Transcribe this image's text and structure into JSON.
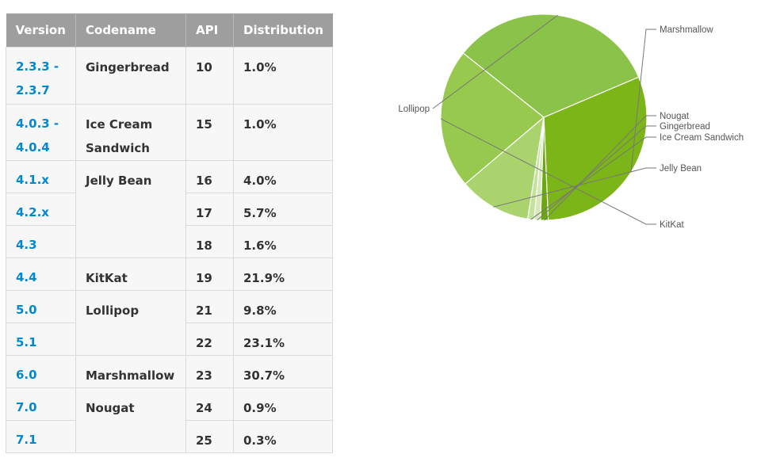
{
  "table": {
    "headers": [
      "Version",
      "Codename",
      "API",
      "Distribution"
    ],
    "rows": [
      {
        "version": "2.3.3 -\n2.3.7",
        "codename": "Gingerbread",
        "api": "10",
        "distribution": "1.0%"
      },
      {
        "version": "4.0.3 -\n4.0.4",
        "codename": "Ice Cream\nSandwich",
        "api": "15",
        "distribution": "1.0%"
      },
      {
        "version": "4.1.x",
        "codename": "Jelly Bean",
        "api": "16",
        "distribution": "4.0%"
      },
      {
        "version": "4.2.x",
        "codename": "",
        "api": "17",
        "distribution": "5.7%"
      },
      {
        "version": "4.3",
        "codename": "",
        "api": "18",
        "distribution": "1.6%"
      },
      {
        "version": "4.4",
        "codename": "KitKat",
        "api": "19",
        "distribution": "21.9%"
      },
      {
        "version": "5.0",
        "codename": "Lollipop",
        "api": "21",
        "distribution": "9.8%"
      },
      {
        "version": "5.1",
        "codename": "",
        "api": "22",
        "distribution": "23.1%"
      },
      {
        "version": "6.0",
        "codename": "Marshmallow",
        "api": "23",
        "distribution": "30.7%"
      },
      {
        "version": "7.0",
        "codename": "Nougat",
        "api": "24",
        "distribution": "0.9%"
      },
      {
        "version": "7.1",
        "codename": "",
        "api": "25",
        "distribution": "0.3%"
      }
    ]
  },
  "chart_data": {
    "type": "pie",
    "title": "",
    "slices": [
      {
        "label": "Marshmallow",
        "value": 30.7,
        "color": "#7cb518"
      },
      {
        "label": "Nougat",
        "value": 1.2,
        "color": "#6aa80f"
      },
      {
        "label": "Gingerbread",
        "value": 1.0,
        "color": "#d6eab8"
      },
      {
        "label": "Ice Cream Sandwich",
        "value": 1.0,
        "color": "#c5e29d"
      },
      {
        "label": "Jelly Bean",
        "value": 11.3,
        "color": "#aad36e"
      },
      {
        "label": "KitKat",
        "value": 21.9,
        "color": "#97c94e"
      },
      {
        "label": "Lollipop",
        "value": 32.9,
        "color": "#8bc34a"
      }
    ],
    "start_angle_deg": -23,
    "direction": "clockwise",
    "colors": {
      "slice_border": "#ffffff",
      "leader_line": "#777777",
      "label_text": "#555555"
    }
  },
  "colors": {
    "header_bg": "#9e9e9e",
    "header_text": "#ffffff",
    "cell_bg": "#f7f7f7",
    "version_link": "#0288d1",
    "cell_text": "#333333",
    "border": "#dadada"
  }
}
